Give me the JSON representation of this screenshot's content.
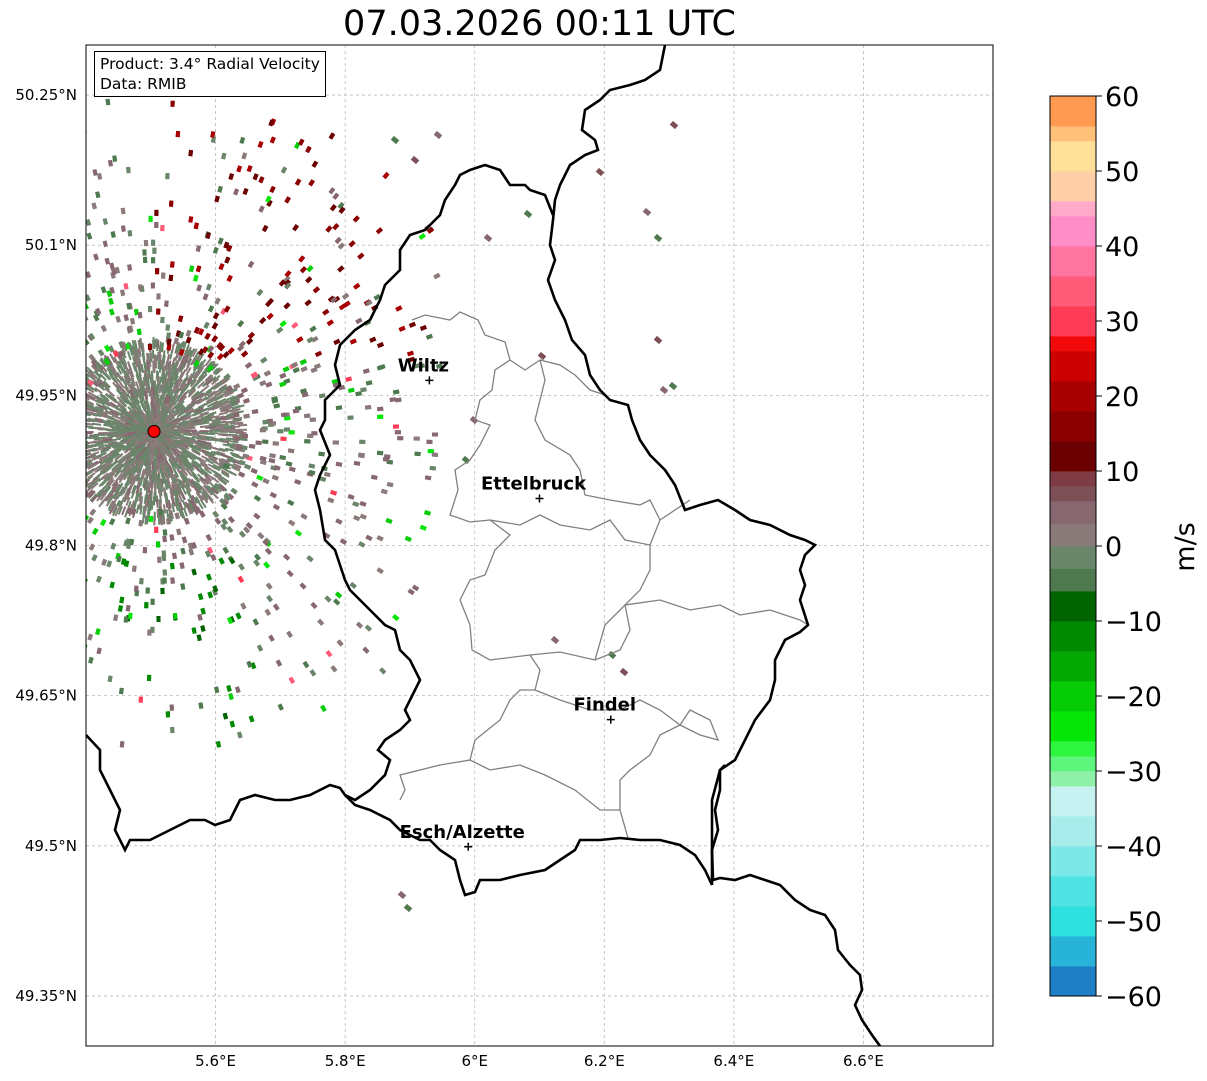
{
  "title": "07.03.2026 00:11 UTC",
  "info": {
    "product": "Product: 3.4° Radial Velocity",
    "data": "Data: RMIB"
  },
  "map": {
    "lon_range": [
      5.4,
      6.8
    ],
    "lat_range": [
      49.3,
      50.3
    ],
    "lat_ticks": [
      {
        "value": 50.25,
        "label": "50.25°N"
      },
      {
        "value": 50.1,
        "label": "50.1°N"
      },
      {
        "value": 49.95,
        "label": "49.95°N"
      },
      {
        "value": 49.8,
        "label": "49.8°N"
      },
      {
        "value": 49.65,
        "label": "49.65°N"
      },
      {
        "value": 49.5,
        "label": "49.5°N"
      },
      {
        "value": 49.35,
        "label": "49.35°N"
      }
    ],
    "lon_ticks": [
      {
        "value": 5.6,
        "label": "5.6°E"
      },
      {
        "value": 5.8,
        "label": "5.8°E"
      },
      {
        "value": 6.0,
        "label": "6°E"
      },
      {
        "value": 6.2,
        "label": "6.2°E"
      },
      {
        "value": 6.4,
        "label": "6.4°E"
      },
      {
        "value": 6.6,
        "label": "6.6°E"
      }
    ],
    "grid": true,
    "radar_site": {
      "lon": 5.505,
      "lat": 49.914,
      "color": "#ff0000"
    },
    "cities": [
      {
        "name": "Wiltz",
        "lon": 5.93,
        "lat": 49.965
      },
      {
        "name": "Ettelbruck",
        "lon": 6.1,
        "lat": 49.847
      },
      {
        "name": "Findel",
        "lon": 6.21,
        "lat": 49.626
      },
      {
        "name": "Esch/Alzette",
        "lon": 5.99,
        "lat": 49.499
      }
    ],
    "border_color": "#000000",
    "canton_color": "#808080"
  },
  "colorbar": {
    "label": "m/s",
    "min": -60,
    "max": 60,
    "ticks": [
      {
        "value": 60,
        "label": "60"
      },
      {
        "value": 50,
        "label": "50"
      },
      {
        "value": 40,
        "label": "40"
      },
      {
        "value": 30,
        "label": "30"
      },
      {
        "value": 20,
        "label": "20"
      },
      {
        "value": 10,
        "label": "10"
      },
      {
        "value": 0,
        "label": "0"
      },
      {
        "value": -10,
        "label": "−10"
      },
      {
        "value": -20,
        "label": "−20"
      },
      {
        "value": -30,
        "label": "−30"
      },
      {
        "value": -40,
        "label": "−40"
      },
      {
        "value": -50,
        "label": "−50"
      },
      {
        "value": -60,
        "label": "−60"
      }
    ],
    "stops": [
      {
        "from": -60,
        "to": -56,
        "color": "#1f7fc6"
      },
      {
        "from": -56,
        "to": -52,
        "color": "#28b4d8"
      },
      {
        "from": -52,
        "to": -48,
        "color": "#2ee0e0"
      },
      {
        "from": -48,
        "to": -44,
        "color": "#4fe3e3"
      },
      {
        "from": -44,
        "to": -40,
        "color": "#7ce8e8"
      },
      {
        "from": -40,
        "to": -36,
        "color": "#a8ecec"
      },
      {
        "from": -36,
        "to": -32,
        "color": "#c7f2f2"
      },
      {
        "from": -32,
        "to": -30,
        "color": "#8ff0a8"
      },
      {
        "from": -30,
        "to": -28,
        "color": "#5ef57c"
      },
      {
        "from": -28,
        "to": -26,
        "color": "#2ef53f"
      },
      {
        "from": -26,
        "to": -22,
        "color": "#06e606"
      },
      {
        "from": -22,
        "to": -18,
        "color": "#05cc05"
      },
      {
        "from": -18,
        "to": -14,
        "color": "#03a803"
      },
      {
        "from": -14,
        "to": -10,
        "color": "#018a01"
      },
      {
        "from": -10,
        "to": -6,
        "color": "#006400"
      },
      {
        "from": -6,
        "to": -3,
        "color": "#4f7a4f"
      },
      {
        "from": -3,
        "to": 0,
        "color": "#6a866a"
      },
      {
        "from": 0,
        "to": 3,
        "color": "#8a7a7a"
      },
      {
        "from": 3,
        "to": 6,
        "color": "#876870"
      },
      {
        "from": 6,
        "to": 8,
        "color": "#7d5058"
      },
      {
        "from": 8,
        "to": 10,
        "color": "#803c44"
      },
      {
        "from": 10,
        "to": 14,
        "color": "#6b0000"
      },
      {
        "from": 14,
        "to": 18,
        "color": "#8a0000"
      },
      {
        "from": 18,
        "to": 22,
        "color": "#a80000"
      },
      {
        "from": 22,
        "to": 26,
        "color": "#cc0000"
      },
      {
        "from": 26,
        "to": 28,
        "color": "#f20a0a"
      },
      {
        "from": 28,
        "to": 32,
        "color": "#ff3c55"
      },
      {
        "from": 32,
        "to": 36,
        "color": "#ff5a78"
      },
      {
        "from": 36,
        "to": 40,
        "color": "#ff74a0"
      },
      {
        "from": 40,
        "to": 44,
        "color": "#ff8ec8"
      },
      {
        "from": 44,
        "to": 46,
        "color": "#ffaac8"
      },
      {
        "from": 46,
        "to": 50,
        "color": "#ffd0a8"
      },
      {
        "from": 50,
        "to": 54,
        "color": "#ffe098"
      },
      {
        "from": 54,
        "to": 56,
        "color": "#ffc07a"
      },
      {
        "from": 56,
        "to": 60,
        "color": "#ff9a50"
      }
    ]
  }
}
